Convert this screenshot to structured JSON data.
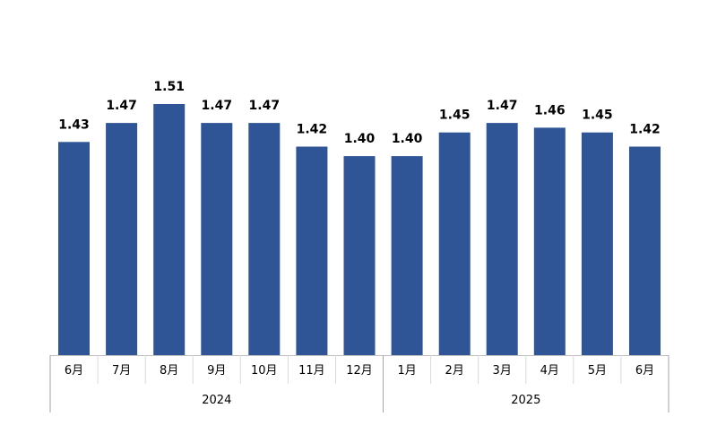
{
  "chart_data": {
    "type": "bar",
    "title": "",
    "xlabel": "",
    "ylabel": "",
    "ylim": [
      0.98,
      1.55
    ],
    "grid": false,
    "bar_color": "#2f5597",
    "categories": [
      "6月",
      "7月",
      "8月",
      "9月",
      "10月",
      "11月",
      "12月",
      "1月",
      "2月",
      "3月",
      "4月",
      "5月",
      "6月"
    ],
    "values": [
      1.43,
      1.47,
      1.51,
      1.47,
      1.47,
      1.42,
      1.4,
      1.4,
      1.45,
      1.47,
      1.46,
      1.45,
      1.42
    ],
    "value_labels": [
      "1.43",
      "1.47",
      "1.51",
      "1.47",
      "1.47",
      "1.42",
      "1.40",
      "1.40",
      "1.45",
      "1.47",
      "1.46",
      "1.45",
      "1.42"
    ],
    "groups": [
      {
        "label": "2024",
        "start": 0,
        "count": 7
      },
      {
        "label": "2025",
        "start": 7,
        "count": 6
      }
    ]
  }
}
